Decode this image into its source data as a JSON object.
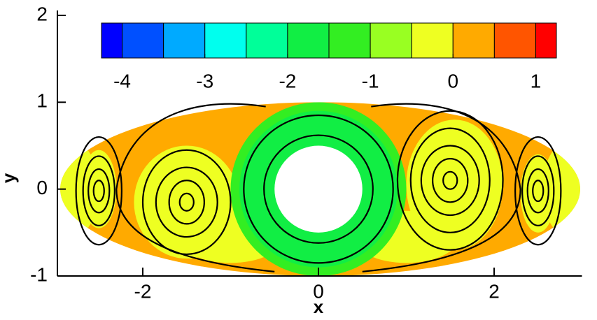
{
  "chart_data": {
    "type": "contour",
    "xlabel": "x",
    "ylabel": "y",
    "xlim": [
      -3,
      3
    ],
    "ylim": [
      -1,
      2
    ],
    "xticks": [
      -2,
      0,
      2
    ],
    "yticks": [
      -1,
      0,
      1,
      2
    ],
    "colorbar": {
      "levels": [
        -4.25,
        -4,
        -3.5,
        -3,
        -2.5,
        -2,
        -1.5,
        -1,
        -0.5,
        0,
        0.5,
        1,
        1.25
      ],
      "colors": [
        "#0000ff",
        "#0050ff",
        "#00aaff",
        "#00ffee",
        "#00ff99",
        "#11ee44",
        "#33ee22",
        "#99ff22",
        "#eeff22",
        "#ffaa00",
        "#ff5500",
        "#ff0000"
      ],
      "ticks": [
        -4,
        -3,
        -2,
        -1,
        0,
        1
      ]
    }
  }
}
